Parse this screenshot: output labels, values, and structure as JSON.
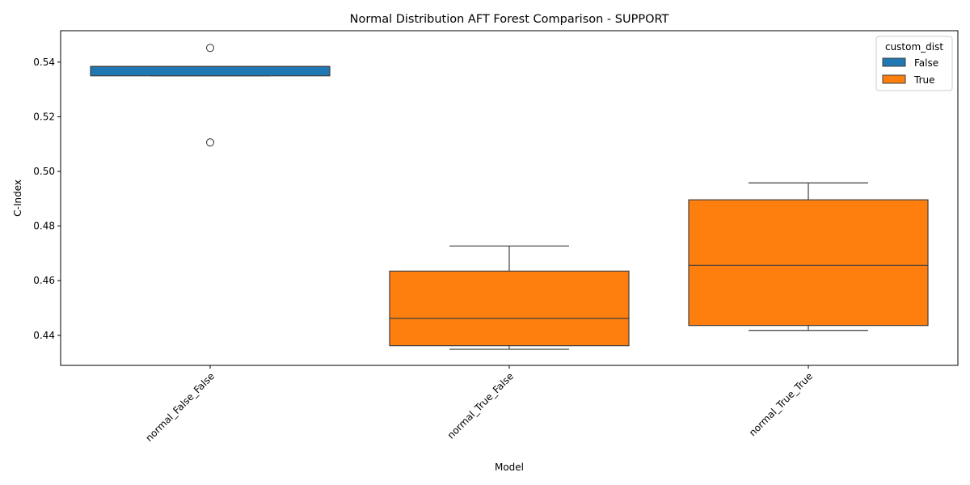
{
  "chart_data": {
    "type": "boxplot",
    "title": "Normal Distribution AFT Forest Comparison - SUPPORT",
    "xlabel": "Model",
    "ylabel": "C-Index",
    "ylim": [
      0.429,
      0.5515
    ],
    "yticks": [
      "0.44",
      "0.46",
      "0.48",
      "0.50",
      "0.52",
      "0.54"
    ],
    "grid": false,
    "legend": {
      "title": "custom_dist",
      "placement": "top-right",
      "entries": [
        {
          "label": "False",
          "color": "#1f77b4"
        },
        {
          "label": "True",
          "color": "#ff7f0e"
        }
      ]
    },
    "categories": [
      "normal_False_False",
      "normal_True_False",
      "normal_True_True"
    ],
    "boxes": [
      {
        "category": "normal_False_False",
        "hue": "False",
        "color": "#1f77b4",
        "whisker_low": 0.535,
        "q1": 0.535,
        "median": 0.5384,
        "q3": 0.5384,
        "whisker_high": 0.5384,
        "outliers": [
          0.5452,
          0.5106
        ]
      },
      {
        "category": "normal_True_False",
        "hue": "True",
        "color": "#ff7f0e",
        "whisker_low": 0.4349,
        "q1": 0.4362,
        "median": 0.4462,
        "q3": 0.4635,
        "whisker_high": 0.4727,
        "outliers": []
      },
      {
        "category": "normal_True_True",
        "hue": "True",
        "color": "#ff7f0e",
        "whisker_low": 0.4418,
        "q1": 0.4436,
        "median": 0.4656,
        "q3": 0.4896,
        "whisker_high": 0.4958,
        "outliers": []
      }
    ]
  }
}
